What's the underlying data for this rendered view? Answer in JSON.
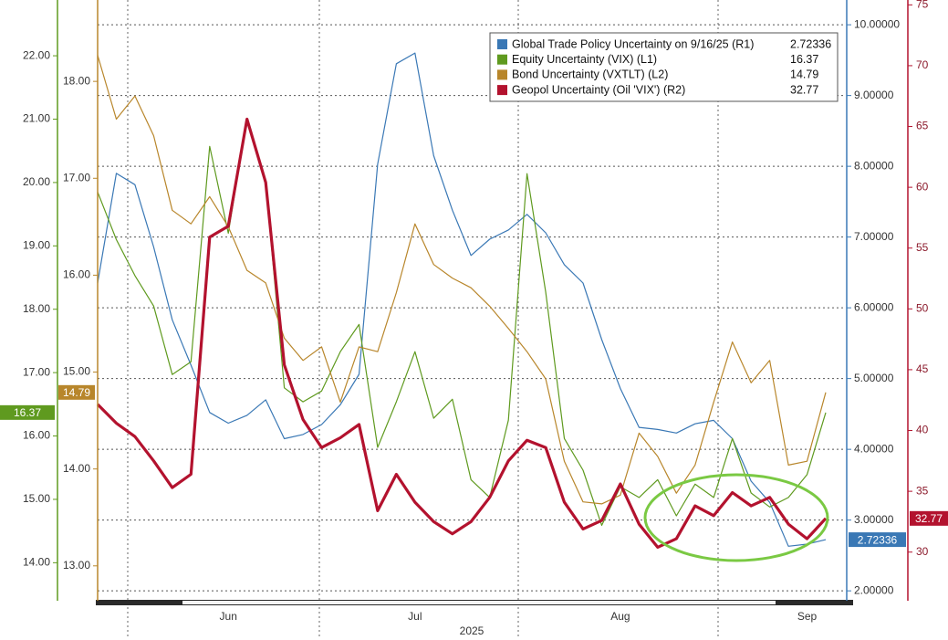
{
  "chart_data": {
    "type": "line",
    "xlabel": "2025",
    "categories": [
      null,
      null,
      null,
      null,
      null,
      null,
      null,
      "Jun",
      null,
      null,
      null,
      null,
      null,
      null,
      null,
      null,
      null,
      "Jul",
      null,
      null,
      null,
      null,
      null,
      null,
      null,
      null,
      null,
      null,
      "Aug",
      null,
      null,
      null,
      null,
      null,
      null,
      null,
      null,
      null,
      "Sep",
      null
    ],
    "ylim": [
      13.4,
      22.88
    ],
    "yticks": [
      {
        "value": 14,
        "label": "14.00"
      },
      {
        "value": 15,
        "label": "15.00"
      },
      {
        "value": 16,
        "label": "16.00"
      },
      {
        "value": 17,
        "label": "17.00"
      },
      {
        "value": 18,
        "label": "18.00"
      },
      {
        "value": 19,
        "label": "19.00"
      },
      {
        "value": 20,
        "label": "20.00"
      },
      {
        "value": 21,
        "label": "21.00"
      },
      {
        "value": 22,
        "label": "22.00"
      }
    ],
    "y2lim": [
      12.64,
      18.84
    ],
    "y2ticks": [
      {
        "value": 13,
        "label": "13.00"
      },
      {
        "value": 14,
        "label": "14.00"
      },
      {
        "value": 15,
        "label": "15.00"
      },
      {
        "value": 16,
        "label": "16.00"
      },
      {
        "value": 17,
        "label": "17.00"
      },
      {
        "value": 18,
        "label": "18.00"
      }
    ],
    "y3lim": [
      1.86,
      10.35
    ],
    "y3ticks": [
      {
        "value": 2,
        "label": "2.00000"
      },
      {
        "value": 3,
        "label": "3.00000"
      },
      {
        "value": 4,
        "label": "4.00000"
      },
      {
        "value": 5,
        "label": "5.00000"
      },
      {
        "value": 6,
        "label": "6.00000"
      },
      {
        "value": 7,
        "label": "7.00000"
      },
      {
        "value": 8,
        "label": "8.00000"
      },
      {
        "value": 9,
        "label": "9.00000"
      },
      {
        "value": 10,
        "label": "10.00000"
      }
    ],
    "y4lim": [
      26.0,
      75.4
    ],
    "y4ticks": [
      30,
      35,
      40,
      45,
      50,
      55,
      60,
      65,
      70,
      75
    ],
    "grid": true,
    "series": [
      {
        "name": "Global Trade Policy Uncertainty on 9/16/25 (R1)",
        "color": "#3a78b5",
        "axis": "y3",
        "values": [
          6.35,
          7.9,
          7.74,
          6.86,
          5.83,
          5.19,
          4.52,
          4.37,
          4.48,
          4.7,
          4.15,
          4.21,
          4.35,
          4.63,
          5.06,
          8.03,
          9.45,
          9.6,
          8.15,
          7.38,
          6.74,
          6.97,
          7.1,
          7.32,
          7.06,
          6.61,
          6.35,
          5.55,
          4.86,
          4.31,
          4.28,
          4.23,
          4.36,
          4.41,
          4.15,
          3.55,
          3.25,
          2.63,
          2.66,
          2.72336
        ]
      },
      {
        "name": "Equity Uncertainty (VIX) (L1)",
        "color": "#5f9a1f",
        "axis": "y",
        "values": [
          19.85,
          19.1,
          18.53,
          18.05,
          16.97,
          17.17,
          20.57,
          19.2,
          21.01,
          20.0,
          16.76,
          16.54,
          16.71,
          17.33,
          17.76,
          15.82,
          16.54,
          17.33,
          16.28,
          16.58,
          15.31,
          15.03,
          16.25,
          20.14,
          18.27,
          15.96,
          15.46,
          14.59,
          15.2,
          15.03,
          15.31,
          14.74,
          15.24,
          15.03,
          15.96,
          15.1,
          14.88,
          15.03,
          15.39,
          16.37
        ]
      },
      {
        "name": "Bond Uncertainty (VXTLT) (L2)",
        "color": "#b8862b",
        "axis": "y2",
        "values": [
          18.27,
          17.61,
          17.85,
          17.44,
          16.67,
          16.53,
          16.81,
          16.5,
          16.05,
          15.92,
          15.35,
          15.12,
          15.26,
          14.69,
          15.26,
          15.21,
          15.82,
          16.53,
          16.11,
          15.97,
          15.87,
          15.68,
          15.45,
          15.21,
          14.93,
          14.08,
          13.66,
          13.64,
          13.73,
          14.37,
          14.13,
          13.75,
          14.04,
          14.69,
          15.31,
          14.89,
          15.12,
          14.04,
          14.08,
          14.79
        ]
      },
      {
        "name": "Geopol Uncertainty (Oil 'VIX') (R2)",
        "color": "#b3122e",
        "axis": "y4",
        "values": [
          42.15,
          40.6,
          39.5,
          37.5,
          35.3,
          36.4,
          55.9,
          56.8,
          65.6,
          60.4,
          45.4,
          40.9,
          38.6,
          39.4,
          40.5,
          33.4,
          36.4,
          34.1,
          32.5,
          31.5,
          32.5,
          34.5,
          37.5,
          39.2,
          38.6,
          34.1,
          31.9,
          32.6,
          35.6,
          32.3,
          30.4,
          31.1,
          33.8,
          33.0,
          34.9,
          33.8,
          34.5,
          32.3,
          31.1,
          32.77
        ]
      }
    ]
  }
}
